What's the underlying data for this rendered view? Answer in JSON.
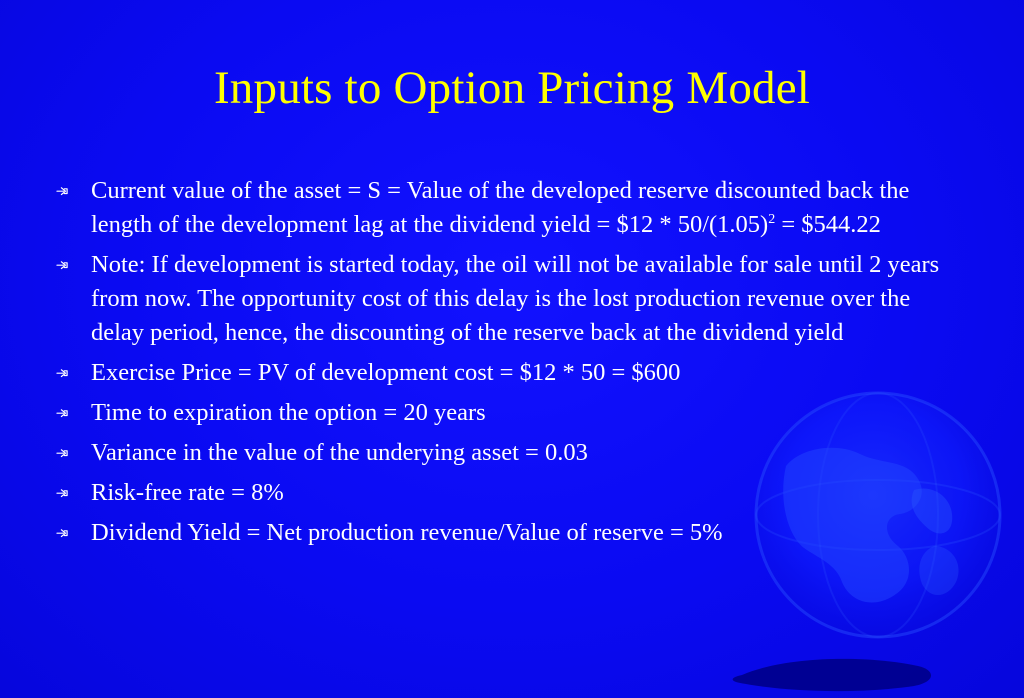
{
  "slide": {
    "title": "Inputs to Option Pricing Model",
    "bullets": [
      {
        "text_before_sup": "Current value of the asset = S = Value of the developed reserve discounted back the length of the development lag at the dividend yield = $12 * 50/(1.05)",
        "sup": "2",
        "text_after_sup": "  =  $544.22"
      },
      {
        "text": "Note: If development is started today, the oil will not be available for sale until 2 years from now.  The opportunity cost of  this delay is the lost production revenue over the delay period, hence, the discounting of the reserve back at the dividend yield"
      },
      {
        "text": "Exercise Price = PV of development cost = $12 * 50 = $600"
      },
      {
        "text": "Time to expiration the option = 20 years"
      },
      {
        "text": "Variance in the value of the underying asset = 0.03"
      },
      {
        "text": "Risk-free rate = 8%"
      },
      {
        "text": "Dividend Yield = Net production revenue/Value of reserve = 5%"
      }
    ]
  },
  "colors": {
    "background": "#0b0bf0",
    "title": "#ffff00",
    "body_text": "#ffffff"
  },
  "icons": {
    "bullet": "pointing-hand-icon",
    "decoration": "globe-icon"
  }
}
